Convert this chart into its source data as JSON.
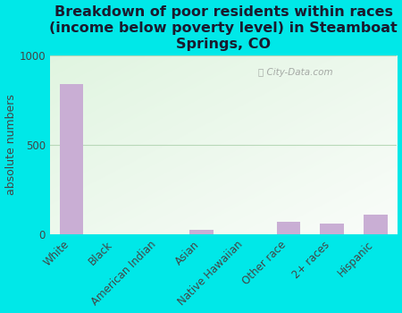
{
  "categories": [
    "White",
    "Black",
    "American Indian",
    "Asian",
    "Native Hawaiian",
    "Other race",
    "2+ races",
    "Hispanic"
  ],
  "values": [
    840,
    0,
    0,
    28,
    0,
    70,
    60,
    110
  ],
  "bar_color": "#c9aed4",
  "title": "Breakdown of poor residents within races\n(income below poverty level) in Steamboat\nSprings, CO",
  "ylabel": "absolute numbers",
  "ylim": [
    0,
    1000
  ],
  "yticks": [
    0,
    500,
    1000
  ],
  "background_outer": "#00e8e8",
  "grid_color": "#b8d8b8",
  "watermark": "City-Data.com",
  "title_fontsize": 11.5,
  "label_fontsize": 8.5,
  "ylabel_fontsize": 9,
  "tick_color": "#444444",
  "title_color": "#1a1a2e"
}
